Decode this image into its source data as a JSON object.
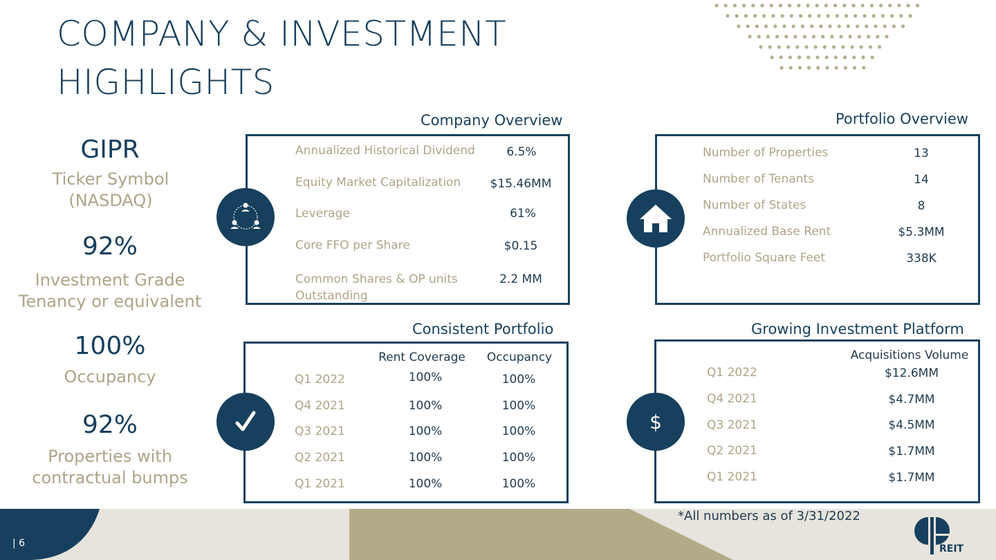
{
  "title_line1": "COMPANY & INVESTMENT",
  "title_line2": "HIGHLIGHTS",
  "stats": [
    {
      "big": "GIPR",
      "label": "Ticker Symbol (NASDAQ)"
    },
    {
      "big": "92%",
      "label": "Investment Grade Tenancy or equivalent"
    },
    {
      "big": "100%",
      "label": "Occupancy"
    },
    {
      "big": "92%",
      "label": "Properties with contractual bumps"
    }
  ],
  "company_overview": {
    "title": "Company Overview",
    "icon": "people-network-icon",
    "rows": [
      {
        "label": "Annualized Historical Dividend",
        "value": "6.5%"
      },
      {
        "label": "Equity Market Capitalization",
        "value": "$15.46MM"
      },
      {
        "label": "Leverage",
        "value": "61%"
      },
      {
        "label": "Core FFO per Share",
        "value": "$0.15"
      },
      {
        "label": "Common Shares & OP units Outstanding",
        "value": "2.2 MM"
      }
    ]
  },
  "portfolio_overview": {
    "title": "Portfolio Overview",
    "icon": "house-icon",
    "rows": [
      {
        "label": "Number of Properties",
        "value": "13"
      },
      {
        "label": "Number of Tenants",
        "value": "14"
      },
      {
        "label": "Number of States",
        "value": "8"
      },
      {
        "label": "Annualized Base Rent",
        "value": "$5.3MM"
      },
      {
        "label": "Portfolio Square Feet",
        "value": "338K"
      }
    ]
  },
  "consistent_portfolio": {
    "title": "Consistent Portfolio",
    "icon": "checkmark-icon",
    "headers": [
      "Rent Coverage",
      "Occupancy"
    ],
    "rows": [
      {
        "period": "Q1 2022",
        "rent": "100%",
        "occ": "100%"
      },
      {
        "period": "Q4 2021",
        "rent": "100%",
        "occ": "100%"
      },
      {
        "period": "Q3 2021",
        "rent": "100%",
        "occ": "100%"
      },
      {
        "period": "Q2 2021",
        "rent": "100%",
        "occ": "100%"
      },
      {
        "period": "Q1 2021",
        "rent": "100%",
        "occ": "100%"
      }
    ]
  },
  "growing_platform": {
    "title": "Growing Investment Platform",
    "icon": "dollar-icon",
    "icon_text": "$",
    "header": "Acquisitions Volume",
    "rows": [
      {
        "period": "Q1 2022",
        "value": "$12.6MM"
      },
      {
        "period": "Q4 2021",
        "value": "$4.7MM"
      },
      {
        "period": "Q3 2021",
        "value": "$4.5MM"
      },
      {
        "period": "Q2 2021",
        "value": "$1.7MM"
      },
      {
        "period": "Q1 2021",
        "value": "$1.7MM"
      }
    ]
  },
  "footnote": "*All numbers as of 3/31/2022",
  "page_number": "| 6",
  "logo_text": "REIT",
  "colors": {
    "navy": "#17405e",
    "tan": "#aea487",
    "light_beige": "#e6e4dc",
    "dark_text": "#1f3a50"
  }
}
